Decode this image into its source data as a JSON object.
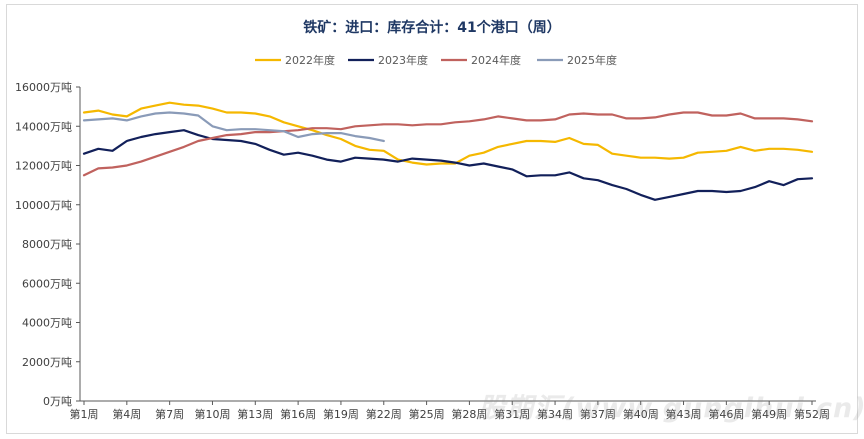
{
  "chart_data": {
    "type": "line",
    "title": "铁矿：进口：库存合计：41个港口（周）",
    "ylim": [
      0,
      16000
    ],
    "ytick_labels": [
      "0万吨",
      "2000万吨",
      "4000万吨",
      "6000万吨",
      "8000万吨",
      "10000万吨",
      "12000万吨",
      "14000万吨",
      "16000万吨"
    ],
    "ytick_values": [
      0,
      2000,
      4000,
      6000,
      8000,
      10000,
      12000,
      14000,
      16000
    ],
    "x_count": 52,
    "xtick_labels": [
      "第1周",
      "第4周",
      "第7周",
      "第10周",
      "第13周",
      "第16周",
      "第19周",
      "第22周",
      "第25周",
      "第28周",
      "第31周",
      "第34周",
      "第37周",
      "第40周",
      "第43周",
      "第46周",
      "第49周",
      "第52周"
    ],
    "xtick_weeks": [
      1,
      4,
      7,
      10,
      13,
      16,
      19,
      22,
      25,
      28,
      31,
      34,
      37,
      40,
      43,
      46,
      49,
      52
    ],
    "legend_position": "top-center",
    "grid": false,
    "series": [
      {
        "name": "2022年度",
        "color": "#F5B800",
        "values": [
          14700,
          14800,
          14600,
          14500,
          14900,
          15050,
          15200,
          15100,
          15050,
          14900,
          14700,
          14700,
          14650,
          14500,
          14200,
          14000,
          13800,
          13550,
          13350,
          13000,
          12800,
          12750,
          12300,
          12150,
          12050,
          12100,
          12100,
          12500,
          12650,
          12950,
          13100,
          13250,
          13250,
          13200,
          13400,
          13100,
          13050,
          12600,
          12500,
          12400,
          12400,
          12350,
          12400,
          12650,
          12700,
          12750,
          12950,
          12750,
          12850,
          12850,
          12800,
          12700
        ]
      },
      {
        "name": "2023年度",
        "color": "#12205A",
        "values": [
          12600,
          12850,
          12750,
          13250,
          13450,
          13600,
          13700,
          13800,
          13550,
          13350,
          13300,
          13250,
          13100,
          12800,
          12550,
          12650,
          12500,
          12300,
          12200,
          12400,
          12350,
          12300,
          12200,
          12350,
          12300,
          12250,
          12150,
          12000,
          12100,
          11950,
          11800,
          11450,
          11500,
          11500,
          11650,
          11350,
          11250,
          11000,
          10800,
          10500,
          10250,
          10400,
          10550,
          10700,
          10700,
          10650,
          10700,
          10900,
          11200,
          11000,
          11300,
          11350
        ]
      },
      {
        "name": "2024年度",
        "color": "#C0625E",
        "values": [
          11500,
          11850,
          11900,
          12000,
          12200,
          12450,
          12700,
          12950,
          13250,
          13400,
          13550,
          13600,
          13700,
          13700,
          13750,
          13800,
          13900,
          13900,
          13850,
          14000,
          14050,
          14100,
          14100,
          14050,
          14100,
          14100,
          14200,
          14250,
          14350,
          14500,
          14400,
          14300,
          14300,
          14350,
          14600,
          14650,
          14600,
          14600,
          14400,
          14400,
          14450,
          14600,
          14700,
          14700,
          14550,
          14550,
          14650,
          14400,
          14400,
          14400,
          14350,
          14250
        ]
      },
      {
        "name": "2025年度",
        "color": "#8A9BB8",
        "values": [
          14300,
          14350,
          14400,
          14300,
          14500,
          14650,
          14700,
          14650,
          14550,
          14000,
          13800,
          13850,
          13850,
          13800,
          13750,
          13450,
          13600,
          13650,
          13650,
          13500,
          13400,
          13250
        ]
      }
    ]
  },
  "watermark": "股期汇(www.gungihui.cn)"
}
